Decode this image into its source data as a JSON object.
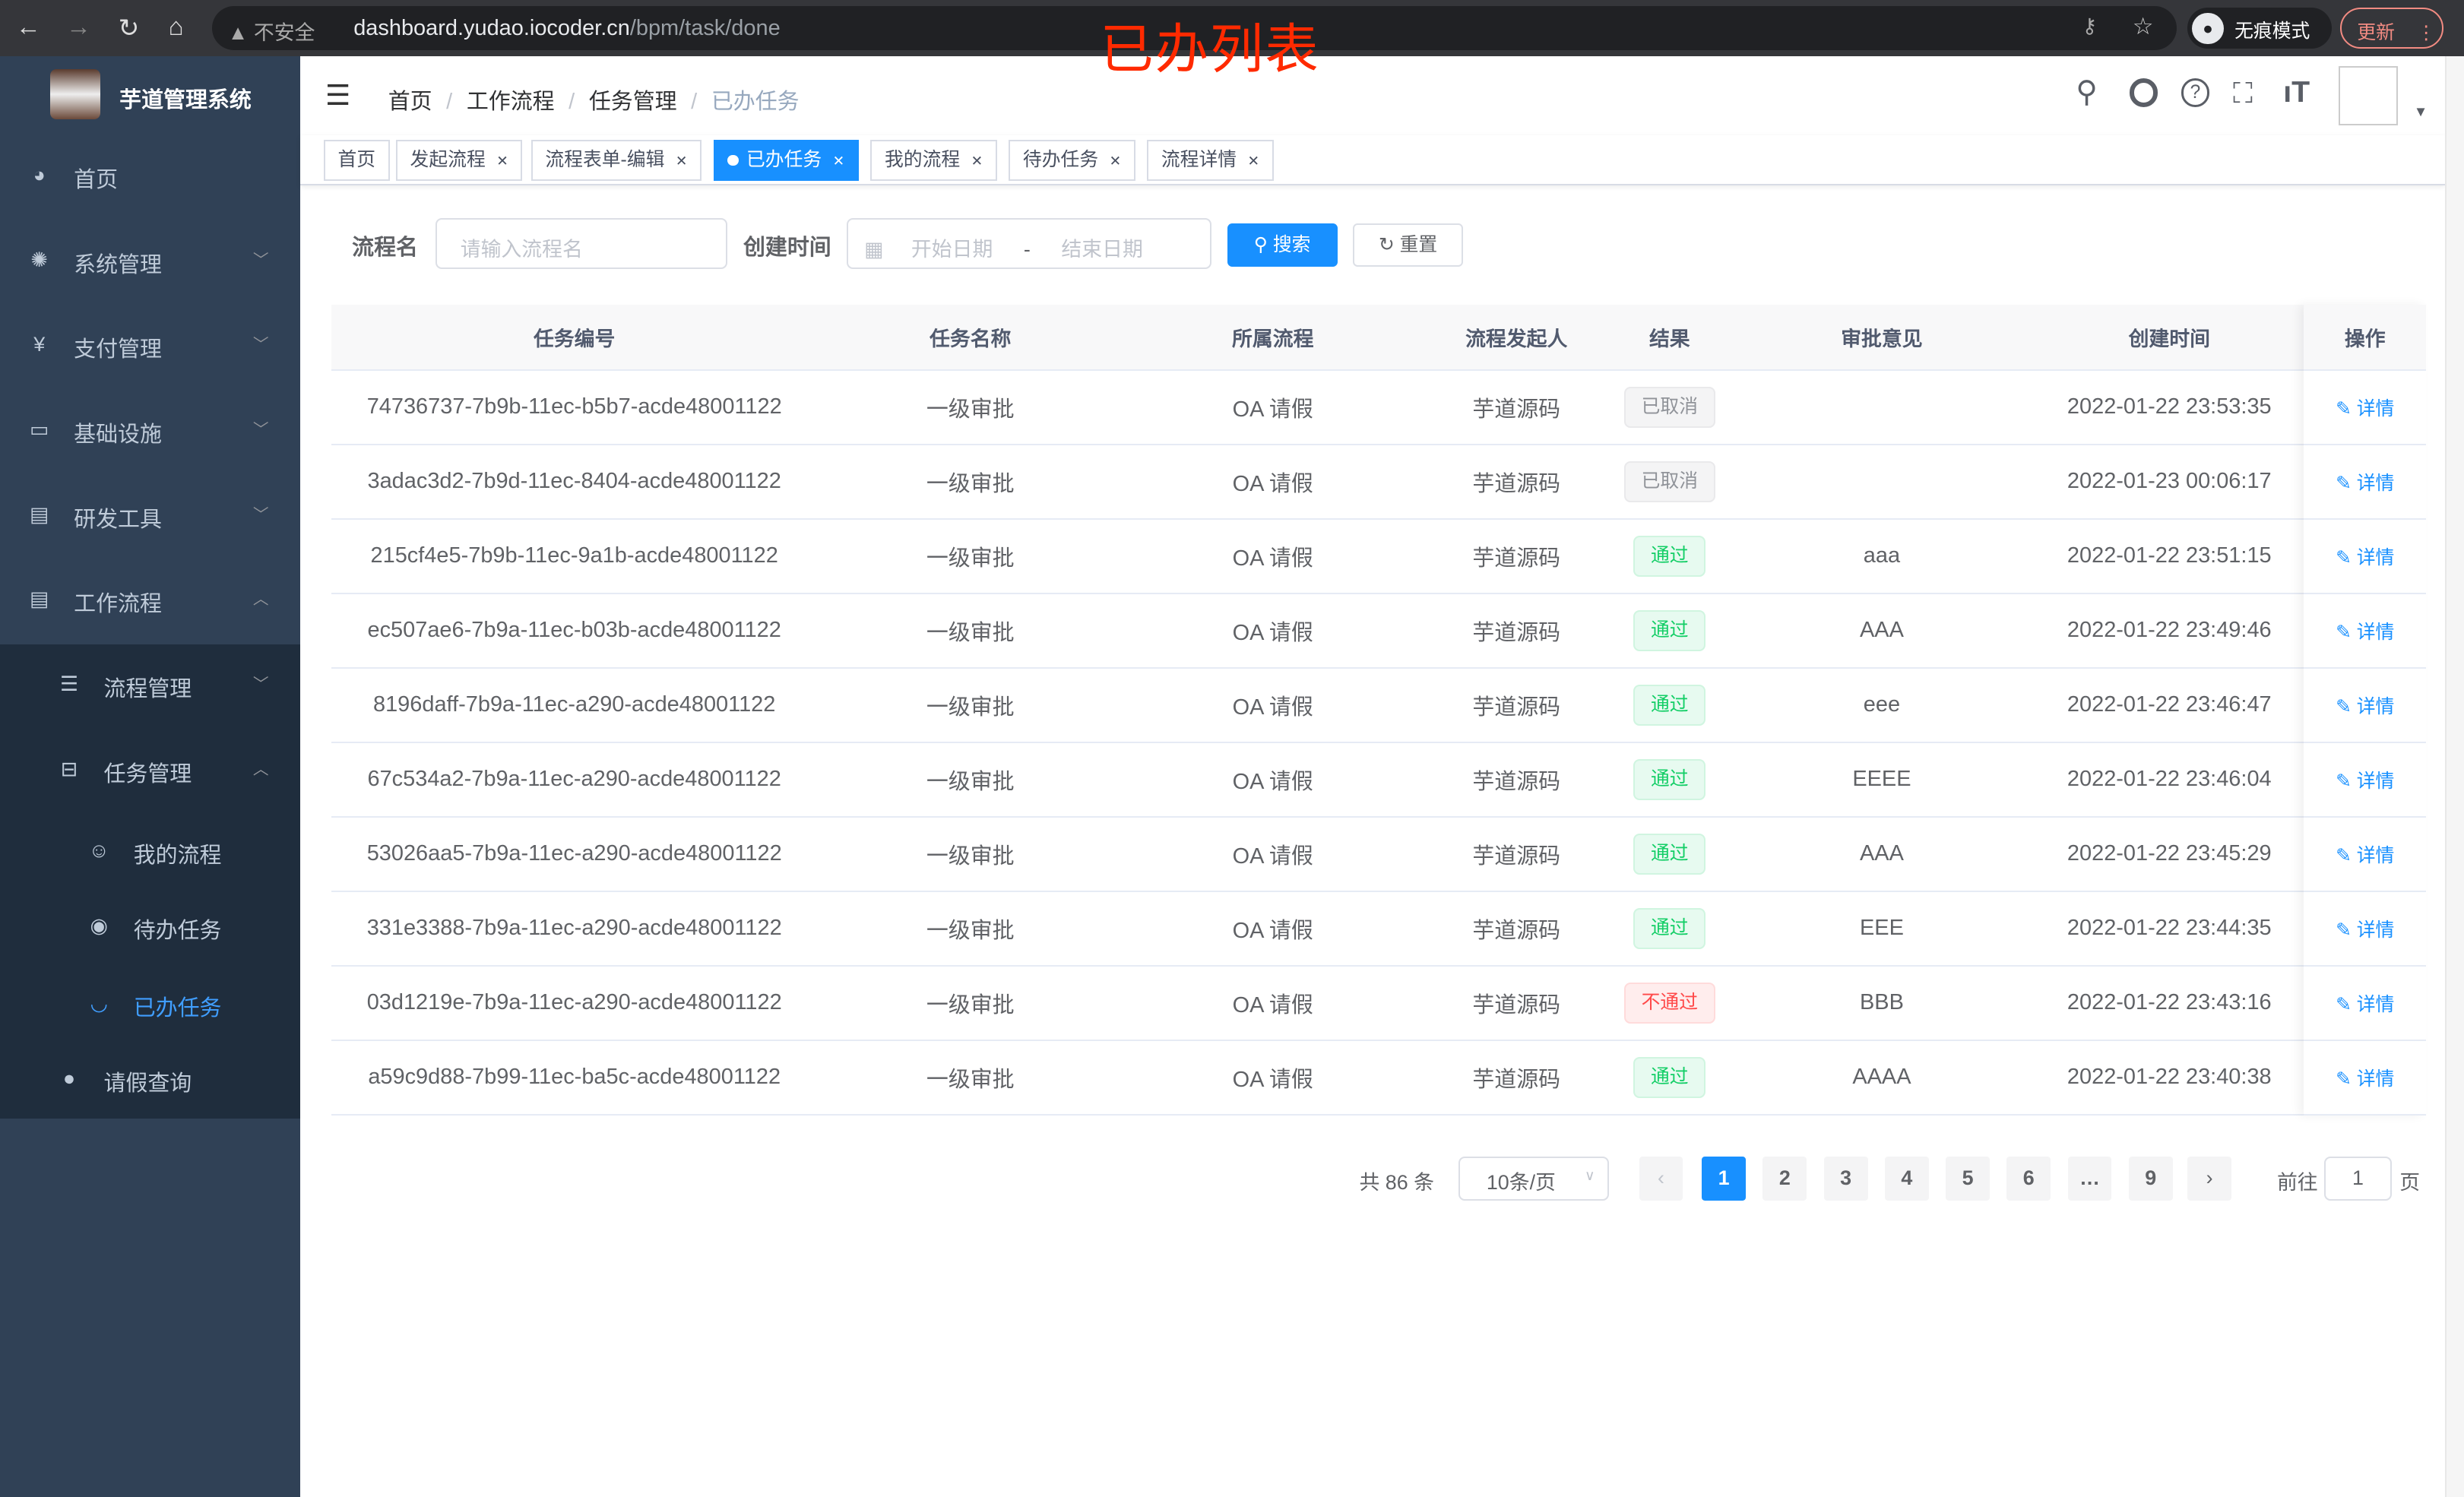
{
  "browser": {
    "security": "不安全",
    "url_host": "dashboard.yudao.iocoder.cn",
    "url_path": "/bpm/task/done",
    "incognito": "无痕模式",
    "update": "更新"
  },
  "overlay_title": "已办列表",
  "sidebar": {
    "brand": "芋道管理系统",
    "items": [
      {
        "label": "首页",
        "icon": "dashboard-icon"
      },
      {
        "label": "系统管理",
        "icon": "gear-icon"
      },
      {
        "label": "支付管理",
        "icon": "yen-icon"
      },
      {
        "label": "基础设施",
        "icon": "monitor-icon"
      },
      {
        "label": "研发工具",
        "icon": "toolbox-icon"
      },
      {
        "label": "工作流程",
        "icon": "toolbox-icon"
      },
      {
        "label": "流程管理",
        "icon": "list-icon"
      },
      {
        "label": "任务管理",
        "icon": "tree-icon"
      },
      {
        "label": "我的流程",
        "icon": "people-icon"
      },
      {
        "label": "待办任务",
        "icon": "eye-icon"
      },
      {
        "label": "已办任务",
        "icon": "eye-closed-icon"
      },
      {
        "label": "请假查询",
        "icon": "user-icon"
      }
    ],
    "active_color": "#409eff"
  },
  "breadcrumb": [
    "首页",
    "工作流程",
    "任务管理",
    "已办任务"
  ],
  "tags": [
    "首页",
    "发起流程",
    "流程表单-编辑",
    "已办任务",
    "我的流程",
    "待办任务",
    "流程详情"
  ],
  "search": {
    "name_label": "流程名",
    "name_placeholder": "请输入流程名",
    "time_label": "创建时间",
    "start_placeholder": "开始日期",
    "sep": "-",
    "end_placeholder": "结束日期",
    "search": "搜索",
    "reset": "重置"
  },
  "table": {
    "headers": [
      "任务编号",
      "任务名称",
      "所属流程",
      "流程发起人",
      "结果",
      "审批意见",
      "创建时间",
      "操作"
    ],
    "rows": [
      {
        "id": "74736737-7b9b-11ec-b5b7-acde48001122",
        "name": "一级审批",
        "process": "OA 请假",
        "starter": "芋道源码",
        "result": "已取消",
        "status": "info",
        "comment": "",
        "time": "2022-01-22 23:53:35",
        "op": "详情"
      },
      {
        "id": "3adac3d2-7b9d-11ec-8404-acde48001122",
        "name": "一级审批",
        "process": "OA 请假",
        "starter": "芋道源码",
        "result": "已取消",
        "status": "info",
        "comment": "",
        "time": "2022-01-23 00:06:17",
        "op": "详情"
      },
      {
        "id": "215cf4e5-7b9b-11ec-9a1b-acde48001122",
        "name": "一级审批",
        "process": "OA 请假",
        "starter": "芋道源码",
        "result": "通过",
        "status": "success",
        "comment": "aaa",
        "time": "2022-01-22 23:51:15",
        "op": "详情"
      },
      {
        "id": "ec507ae6-7b9a-11ec-b03b-acde48001122",
        "name": "一级审批",
        "process": "OA 请假",
        "starter": "芋道源码",
        "result": "通过",
        "status": "success",
        "comment": "AAA",
        "time": "2022-01-22 23:49:46",
        "op": "详情"
      },
      {
        "id": "8196daff-7b9a-11ec-a290-acde48001122",
        "name": "一级审批",
        "process": "OA 请假",
        "starter": "芋道源码",
        "result": "通过",
        "status": "success",
        "comment": "eee",
        "time": "2022-01-22 23:46:47",
        "op": "详情"
      },
      {
        "id": "67c534a2-7b9a-11ec-a290-acde48001122",
        "name": "一级审批",
        "process": "OA 请假",
        "starter": "芋道源码",
        "result": "通过",
        "status": "success",
        "comment": "EEEE",
        "time": "2022-01-22 23:46:04",
        "op": "详情"
      },
      {
        "id": "53026aa5-7b9a-11ec-a290-acde48001122",
        "name": "一级审批",
        "process": "OA 请假",
        "starter": "芋道源码",
        "result": "通过",
        "status": "success",
        "comment": "AAA",
        "time": "2022-01-22 23:45:29",
        "op": "详情"
      },
      {
        "id": "331e3388-7b9a-11ec-a290-acde48001122",
        "name": "一级审批",
        "process": "OA 请假",
        "starter": "芋道源码",
        "result": "通过",
        "status": "success",
        "comment": "EEE",
        "time": "2022-01-22 23:44:35",
        "op": "详情"
      },
      {
        "id": "03d1219e-7b9a-11ec-a290-acde48001122",
        "name": "一级审批",
        "process": "OA 请假",
        "starter": "芋道源码",
        "result": "不通过",
        "status": "danger",
        "comment": "BBB",
        "time": "2022-01-22 23:43:16",
        "op": "详情"
      },
      {
        "id": "a59c9d88-7b99-11ec-ba5c-acde48001122",
        "name": "一级审批",
        "process": "OA 请假",
        "starter": "芋道源码",
        "result": "通过",
        "status": "success",
        "comment": "AAAA",
        "time": "2022-01-22 23:40:38",
        "op": "详情"
      }
    ]
  },
  "pagination": {
    "total": "共 86 条",
    "page_size": "10条/页",
    "pages": [
      "1",
      "2",
      "3",
      "4",
      "5",
      "6",
      "…",
      "9"
    ],
    "current": "1",
    "goto_label": "前往",
    "goto_value": "1",
    "page_suffix": "页",
    "prev": "‹",
    "next": "›"
  }
}
